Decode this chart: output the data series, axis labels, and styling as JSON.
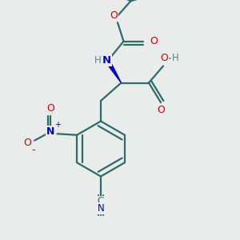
{
  "bg_color": "#eaecec",
  "bond_color": "#2d6b6b",
  "bond_width": 1.6,
  "atom_colors": {
    "C": "#2d6b6b",
    "N": "#0000cc",
    "O": "#cc0000",
    "H": "#4a8a8a",
    "default": "#2d6b6b"
  },
  "font_size": 8.5
}
